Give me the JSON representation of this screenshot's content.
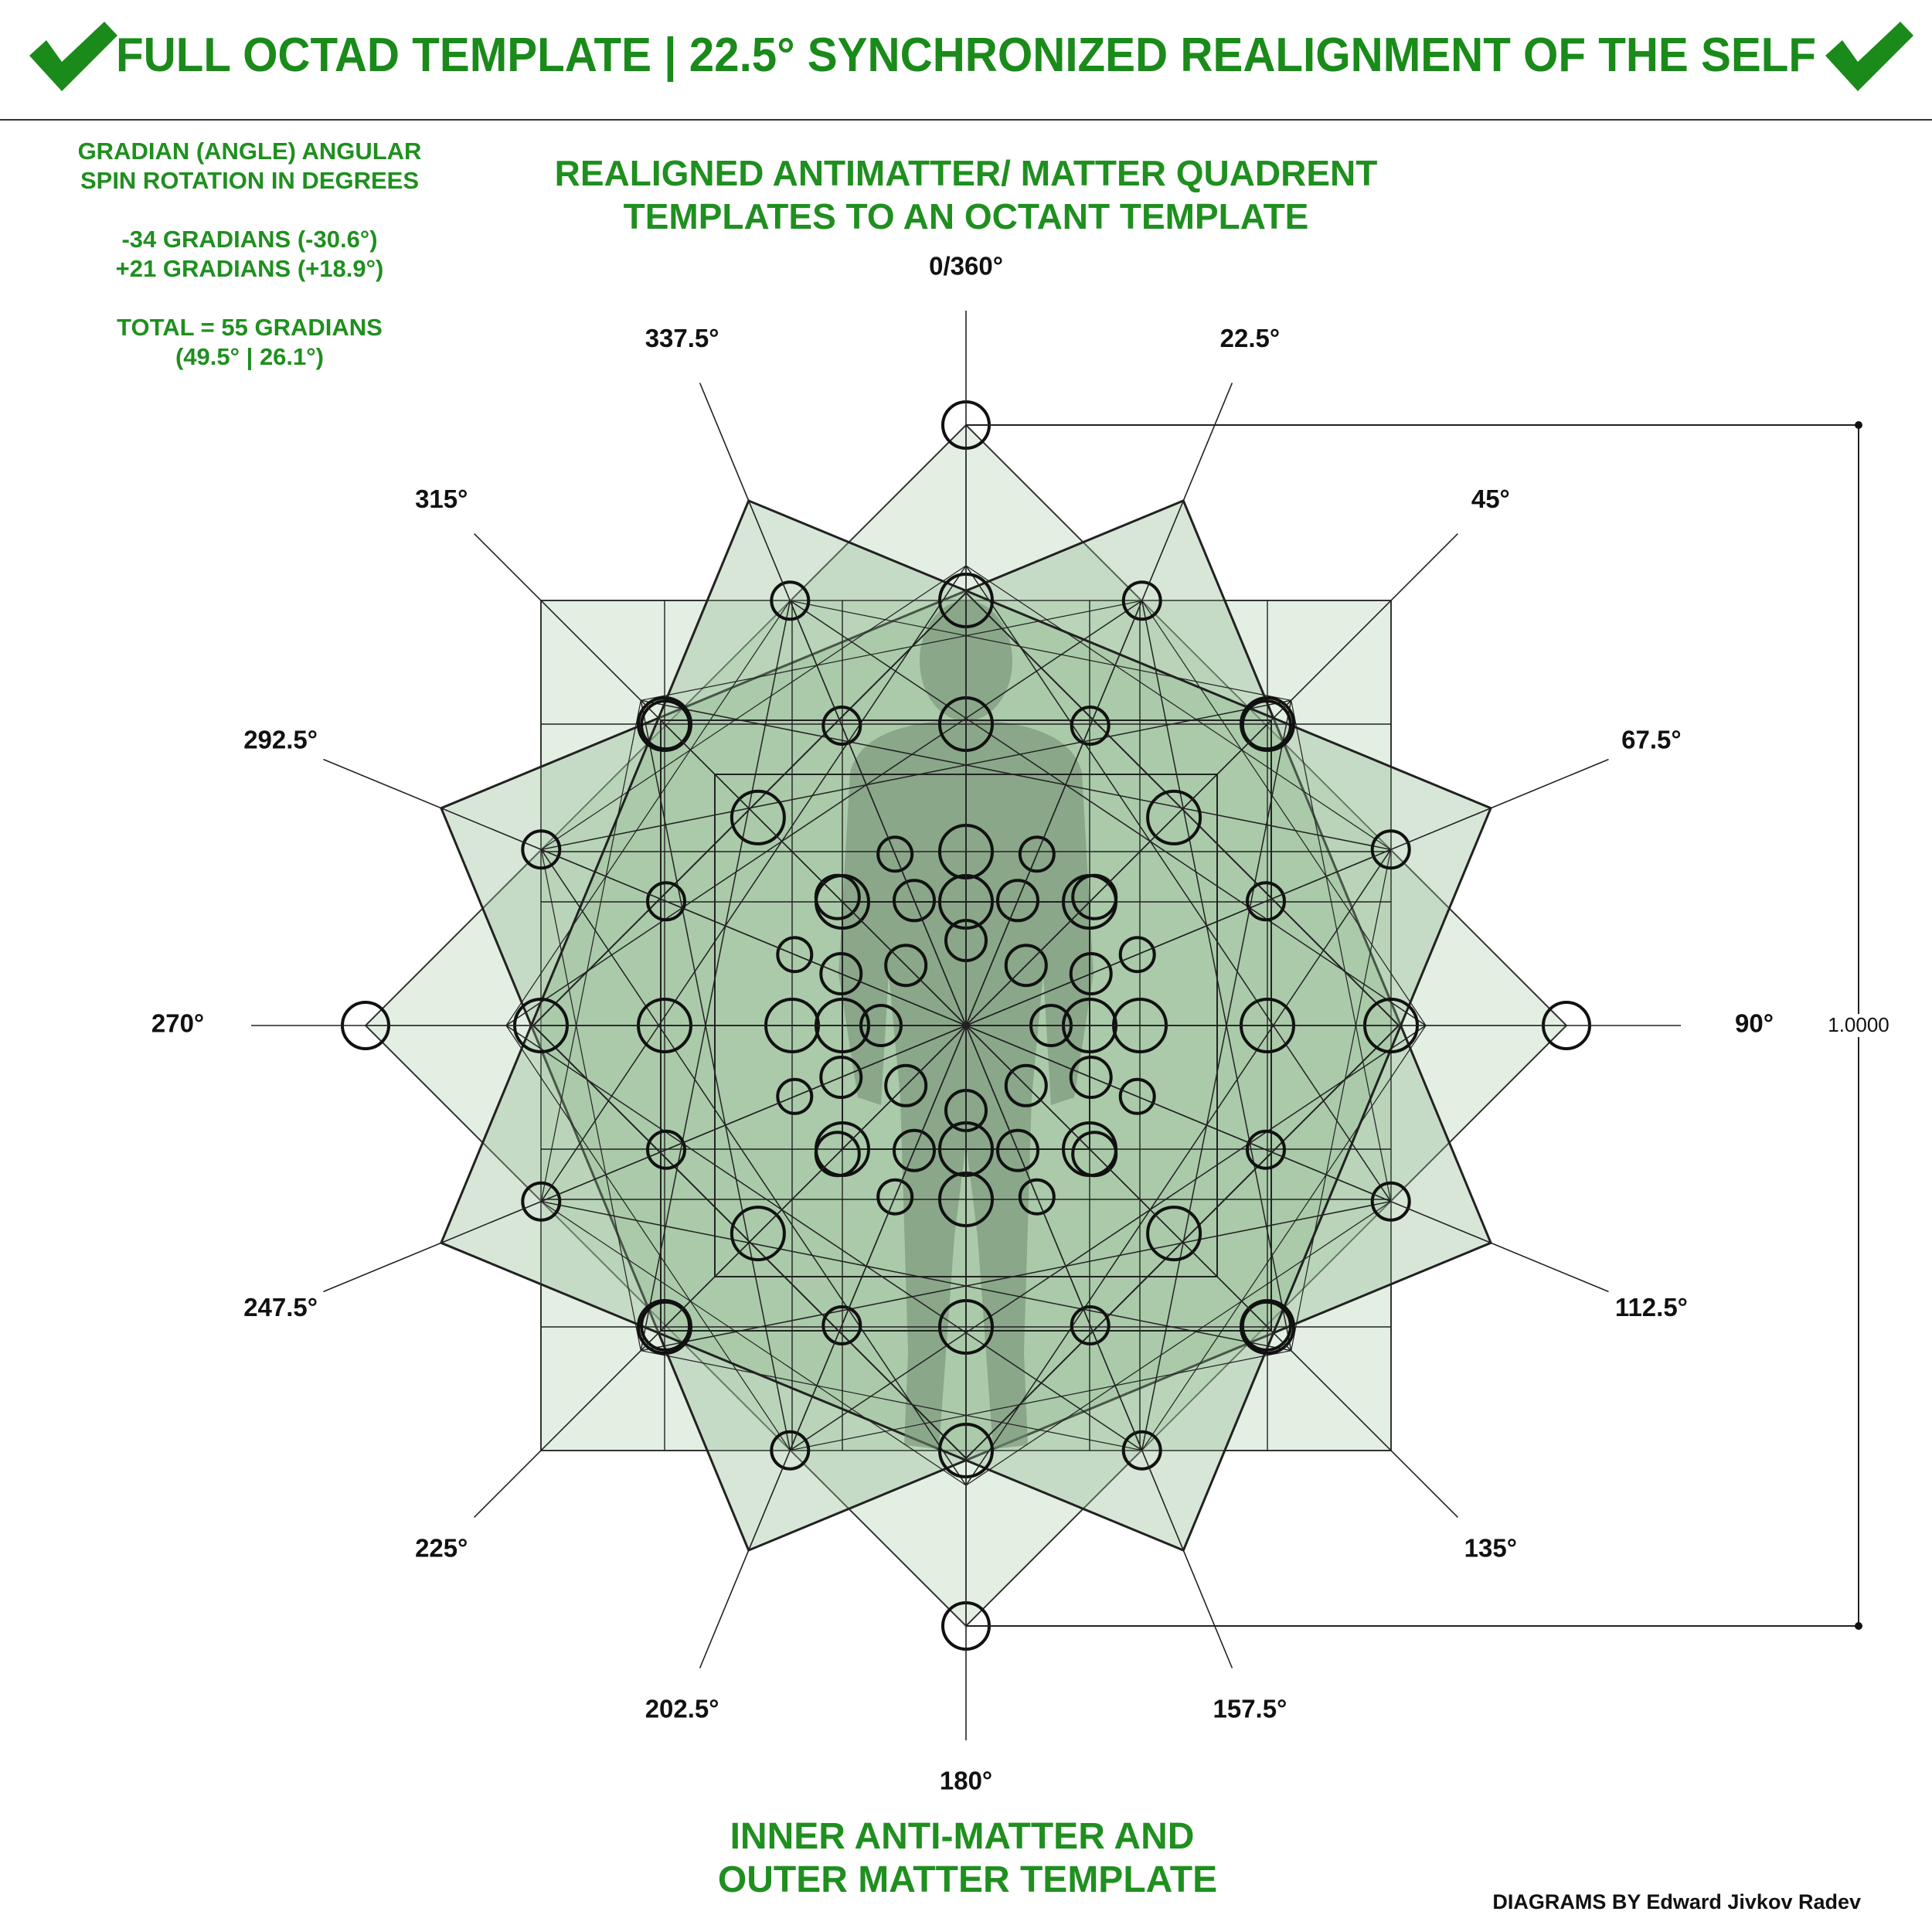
{
  "header": {
    "title": "FULL OCTAD TEMPLATE | 22.5° SYNCHRONIZED REALIGNMENT OF THE SELF",
    "accent_color": "#1a8a1a"
  },
  "info_panel": {
    "line1": "GRADIAN (ANGLE) ANGULAR",
    "line2": "SPIN ROTATION IN DEGREES",
    "line3": "-34 GRADIANS (-30.6°)",
    "line4": "+21 GRADIANS (+18.9°)",
    "line5": "TOTAL = 55 GRADIANS",
    "line6": "(49.5° | 26.1°)"
  },
  "top_caption": {
    "line1": "REALIGNED ANTIMATTER/ MATTER QUADRENT",
    "line2": "TEMPLATES TO AN OCTANT TEMPLATE"
  },
  "bottom_caption": {
    "line1": "INNER ANTI-MATTER AND",
    "line2": "OUTER MATTER TEMPLATE"
  },
  "angles": [
    {
      "label": "0/360°",
      "deg": 0
    },
    {
      "label": "22.5°",
      "deg": 22.5
    },
    {
      "label": "45°",
      "deg": 45
    },
    {
      "label": "67.5°",
      "deg": 67.5
    },
    {
      "label": "90°",
      "deg": 90
    },
    {
      "label": "112.5°",
      "deg": 112.5
    },
    {
      "label": "135°",
      "deg": 135
    },
    {
      "label": "157.5°",
      "deg": 157.5
    },
    {
      "label": "180°",
      "deg": 180
    },
    {
      "label": "202.5°",
      "deg": 202.5
    },
    {
      "label": "225°",
      "deg": 225
    },
    {
      "label": "247.5°",
      "deg": 247.5
    },
    {
      "label": "270°",
      "deg": 270
    },
    {
      "label": "292.5°",
      "deg": 292.5
    },
    {
      "label": "315°",
      "deg": 315
    },
    {
      "label": "337.5°",
      "deg": 337.5
    }
  ],
  "dimension": {
    "label": "1.0000"
  },
  "credit": "DIAGRAMS BY Edward Jivkov Radev",
  "icons": {
    "check": "checkmark-icon",
    "figure": "human-figure-icon"
  }
}
